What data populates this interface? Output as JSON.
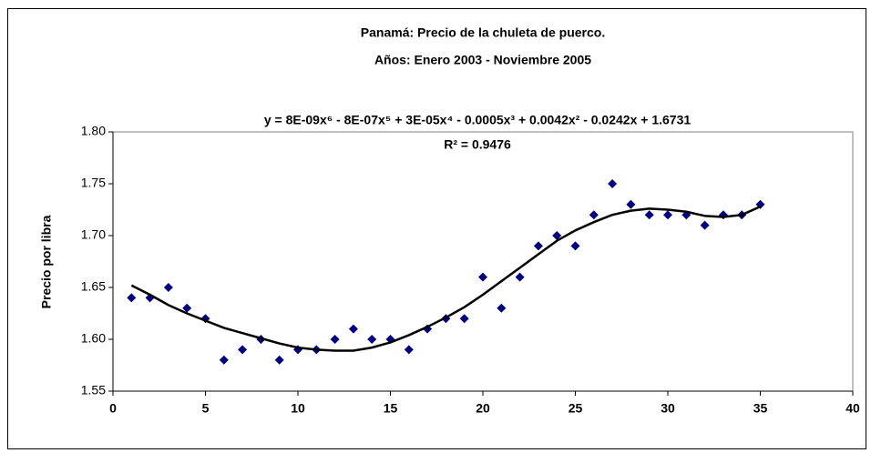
{
  "chart_data": {
    "type": "scatter",
    "title": [
      "Panamá: Precio de la chuleta de puerco.",
      "Años: Enero 2003 - Noviembre 2005"
    ],
    "annotations": [
      "y = 8E-09x⁶ - 8E-07x⁵ + 3E-05x⁴ - 0.0005x³ + 0.0042x² - 0.0242x + 1.6731",
      "R² = 0.9476"
    ],
    "y_label": "Precio por libra",
    "x": [
      1,
      2,
      3,
      4,
      5,
      6,
      7,
      8,
      9,
      10,
      11,
      12,
      13,
      14,
      15,
      16,
      17,
      18,
      19,
      20,
      21,
      22,
      23,
      24,
      25,
      26,
      27,
      28,
      29,
      30,
      31,
      32,
      33,
      34,
      35
    ],
    "series": [
      {
        "kind": "points",
        "color": "#000080",
        "values": [
          1.64,
          1.64,
          1.65,
          1.63,
          1.62,
          1.58,
          1.59,
          1.6,
          1.58,
          1.59,
          1.59,
          1.6,
          1.61,
          1.6,
          1.6,
          1.59,
          1.61,
          1.62,
          1.62,
          1.66,
          1.63,
          1.66,
          1.69,
          1.7,
          1.69,
          1.72,
          1.75,
          1.73,
          1.72,
          1.72,
          1.72,
          1.71,
          1.72,
          1.72,
          1.73
        ]
      },
      {
        "kind": "trendline",
        "color": "#000000",
        "values": [
          1.652,
          1.643,
          1.633,
          1.625,
          1.618,
          1.611,
          1.606,
          1.601,
          1.596,
          1.592,
          1.59,
          1.589,
          1.589,
          1.592,
          1.597,
          1.604,
          1.612,
          1.621,
          1.631,
          1.643,
          1.656,
          1.669,
          1.682,
          1.695,
          1.705,
          1.713,
          1.72,
          1.724,
          1.726,
          1.725,
          1.723,
          1.719,
          1.718,
          1.72,
          1.728
        ]
      }
    ],
    "xlim": [
      0,
      40
    ],
    "xticks": [
      0,
      5,
      10,
      15,
      20,
      25,
      30,
      35,
      40
    ],
    "ylim": [
      1.55,
      1.8
    ],
    "yticks": [
      1.55,
      {
        "value": 1.6,
        "label": "1.60"
      },
      1.65,
      {
        "value": 1.7,
        "label": "1.70"
      },
      1.75,
      {
        "value": 1.8,
        "label": "1.80"
      }
    ]
  }
}
